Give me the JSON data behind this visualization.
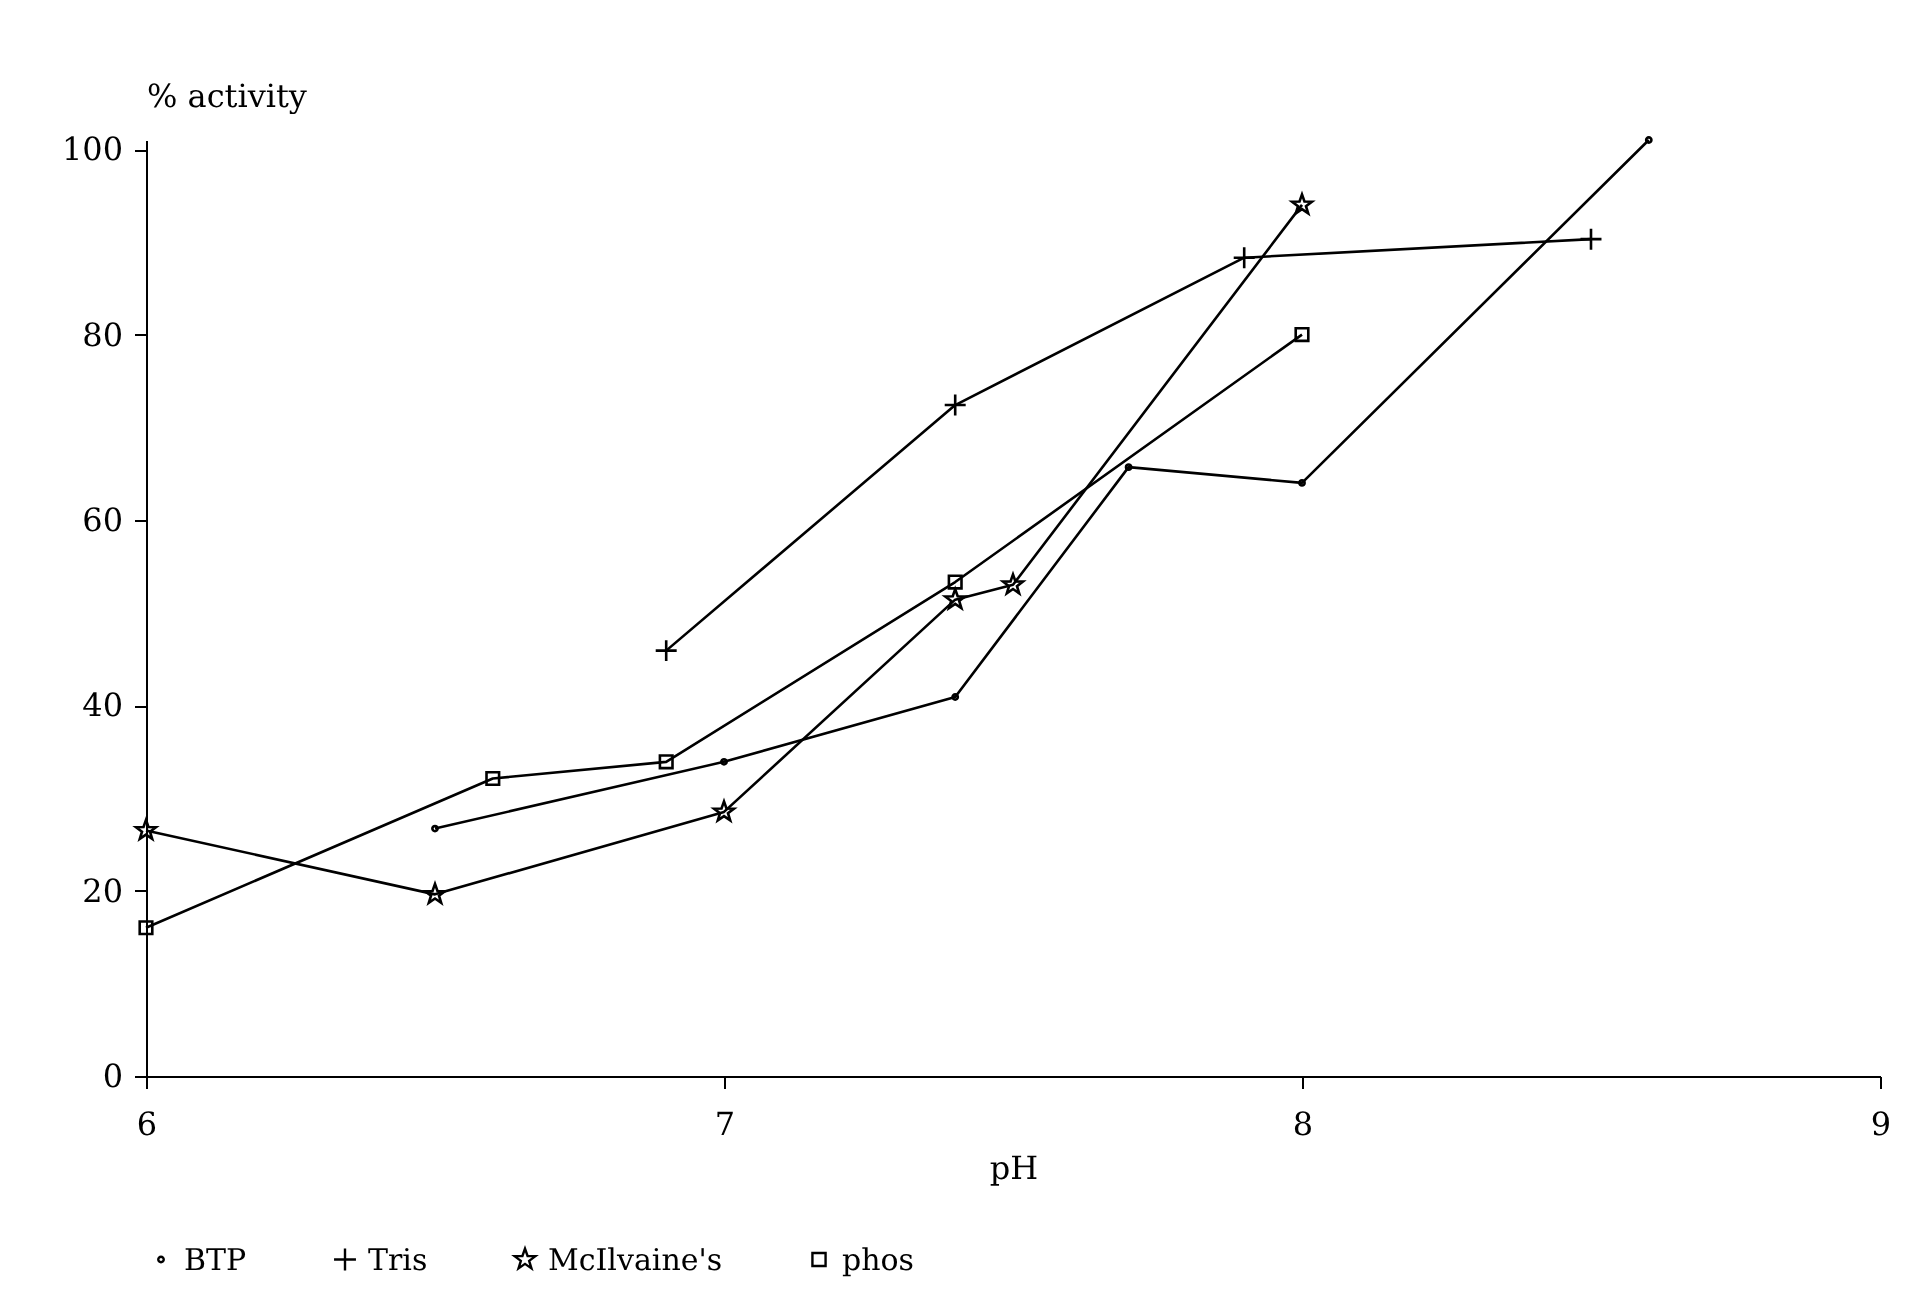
{
  "chart_data": {
    "type": "line",
    "xlabel": "pH",
    "ylabel": "% activity",
    "xlim": [
      6,
      9
    ],
    "xticks": [
      6,
      7,
      8,
      9
    ],
    "ylim": [
      0,
      101
    ],
    "yticks": [
      0,
      20,
      40,
      60,
      80,
      100
    ],
    "grid": false,
    "legend": "bottom",
    "line_style": "solid",
    "series": [
      {
        "name": "BTP",
        "color": "#000000",
        "marker": "circle",
        "x": [
          6.5,
          7.0,
          7.4,
          7.7,
          8.0,
          8.6
        ],
        "values": [
          26.7,
          33.9,
          40.9,
          65.7,
          64,
          101
        ]
      },
      {
        "name": "Tris",
        "color": "#000000",
        "marker": "cross",
        "x": [
          6.9,
          7.4,
          7.9,
          8.5
        ],
        "values": [
          45.9,
          72.4,
          88.3,
          90.3
        ]
      },
      {
        "name": "McIlvaine's",
        "color": "#000000",
        "marker": "star",
        "x": [
          6.0,
          6.5,
          7.0,
          7.4,
          7.5,
          8.0
        ],
        "values": [
          26.5,
          19.6,
          28.5,
          51.4,
          53,
          94
        ]
      },
      {
        "name": "phos",
        "color": "#000000",
        "marker": "square",
        "x": [
          6.0,
          6.6,
          6.9,
          7.4,
          8.0
        ],
        "values": [
          16,
          32.1,
          33.9,
          53.3,
          80
        ]
      }
    ]
  }
}
